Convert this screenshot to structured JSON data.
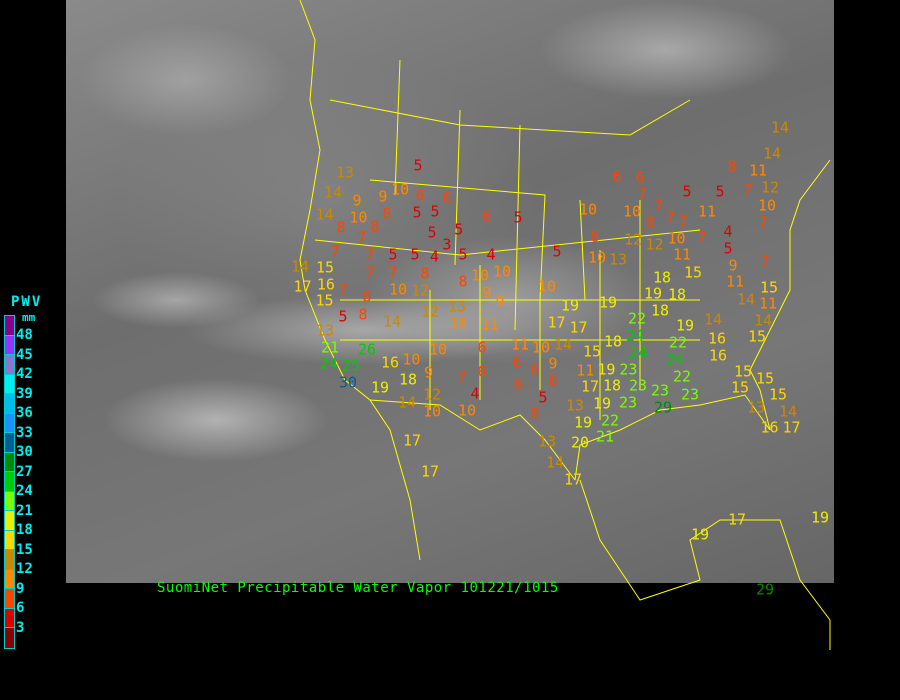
{
  "caption": "SuomiNet Precipitable Water Vapor 101221/1015",
  "legend": {
    "title": "PWV",
    "unit": "mm",
    "ticks": [
      "48",
      "45",
      "42",
      "39",
      "36",
      "33",
      "30",
      "27",
      "24",
      "21",
      "18",
      "15",
      "12",
      "9",
      "6",
      "3"
    ],
    "colors": [
      "#8b008b",
      "#9933ff",
      "#8877cc",
      "#00eeee",
      "#00bbee",
      "#1e90ff",
      "#005f8f",
      "#008b00",
      "#00cc00",
      "#77ff00",
      "#eeee00",
      "#ffd700",
      "#cc8800",
      "#ff8800",
      "#ff4400",
      "#dd0000",
      "#8b0000"
    ]
  },
  "map": {
    "background": "infrared satellite imagery",
    "boundary_color": "#ffff00"
  },
  "stations": [
    5,
    13,
    14,
    10,
    6,
    6,
    9,
    9,
    8,
    5,
    5,
    6,
    5,
    14,
    10,
    8,
    8,
    5,
    5,
    7,
    3,
    7,
    7,
    5,
    5,
    4,
    5,
    4,
    14,
    15,
    7,
    7,
    8,
    10,
    17,
    16,
    7,
    10,
    12,
    8,
    10,
    9,
    15,
    8,
    9,
    12,
    13,
    5,
    8,
    14,
    10,
    11,
    13,
    21,
    24,
    26,
    25,
    30,
    10,
    6,
    16,
    10,
    11,
    10,
    6,
    6,
    9,
    7,
    6,
    18,
    19,
    6,
    12,
    4,
    5,
    14,
    10,
    10,
    8,
    8,
    6,
    6,
    11,
    7,
    12,
    5,
    5,
    7,
    7,
    10,
    10,
    11,
    10,
    7,
    8,
    7,
    7,
    8,
    12,
    12,
    10,
    7,
    4,
    5,
    11,
    5,
    10,
    13,
    7,
    9,
    11,
    15,
    18,
    19,
    18,
    15,
    10,
    14,
    11,
    19,
    19,
    18,
    17,
    14,
    14,
    22,
    17,
    24,
    19,
    15,
    14,
    18,
    22,
    16,
    15,
    16,
    24,
    24,
    9,
    8,
    11,
    19,
    23,
    22,
    15,
    15,
    23,
    17,
    18,
    15,
    23,
    23,
    23,
    15,
    13,
    19,
    13,
    14,
    29,
    19,
    22,
    21,
    16,
    17,
    13,
    20,
    14,
    14,
    17,
    17,
    14,
    17,
    19,
    17,
    19,
    29
  ]
}
